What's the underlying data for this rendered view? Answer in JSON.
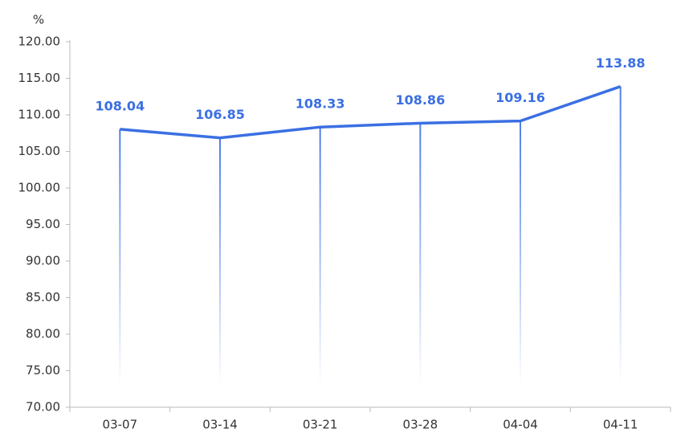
{
  "chart_data": {
    "type": "line",
    "y_label": "%",
    "categories": [
      "03-07",
      "03-14",
      "03-21",
      "03-28",
      "04-04",
      "04-11"
    ],
    "values": [
      108.04,
      106.85,
      108.33,
      108.86,
      109.16,
      113.88
    ],
    "color": "#3b6fe3",
    "ylim": [
      70,
      120
    ],
    "yticks": [
      {
        "value": 70,
        "label": "70.00"
      },
      {
        "value": 75,
        "label": "75.00"
      },
      {
        "value": 80,
        "label": "80.00"
      },
      {
        "value": 85,
        "label": "85.00"
      },
      {
        "value": 90,
        "label": "90.00"
      },
      {
        "value": 95,
        "label": "95.00"
      },
      {
        "value": 100,
        "label": "100.00"
      },
      {
        "value": 105,
        "label": "105.00"
      },
      {
        "value": 110,
        "label": "110.00"
      },
      {
        "value": 115,
        "label": "115.00"
      },
      {
        "value": 120,
        "label": "120.00"
      }
    ],
    "grid": false
  }
}
